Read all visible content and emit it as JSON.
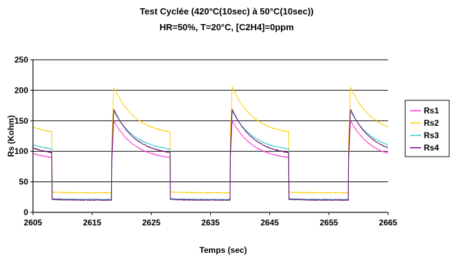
{
  "chart_data": {
    "type": "line",
    "title_line1": "Test Cyclée (420°C(10sec) à 50°C(10sec))",
    "title_line2": "HR=50%,  T=20°C,  [C2H4]=0ppm",
    "xlabel": "Temps (sec)",
    "ylabel": "Rs (Kohm)",
    "xlim": [
      2605,
      2665
    ],
    "ylim": [
      0,
      250
    ],
    "xticks": [
      2605,
      2615,
      2625,
      2635,
      2645,
      2655,
      2665
    ],
    "yticks": [
      0,
      50,
      100,
      150,
      200,
      250
    ],
    "grid": "horizontal",
    "legend_position": "right",
    "cycle": {
      "period": 20,
      "rise_times": [
        2618.3,
        2638.3,
        2658.3
      ],
      "drop_times": [
        2608.2,
        2628.2,
        2648.2
      ]
    },
    "series": [
      {
        "name": "Rs1",
        "color": "#ff33cc",
        "peak": 157,
        "end_high": 90,
        "low": 21
      },
      {
        "name": "Rs2",
        "color": "#ffcc00",
        "peak": 214,
        "end_high": 132,
        "low": 32
      },
      {
        "name": "Rs3",
        "color": "#33cccc",
        "peak": 173,
        "end_high": 104,
        "low": 21
      },
      {
        "name": "Rs4",
        "color": "#660066",
        "peak": 177,
        "end_high": 98,
        "low": 20
      }
    ]
  }
}
